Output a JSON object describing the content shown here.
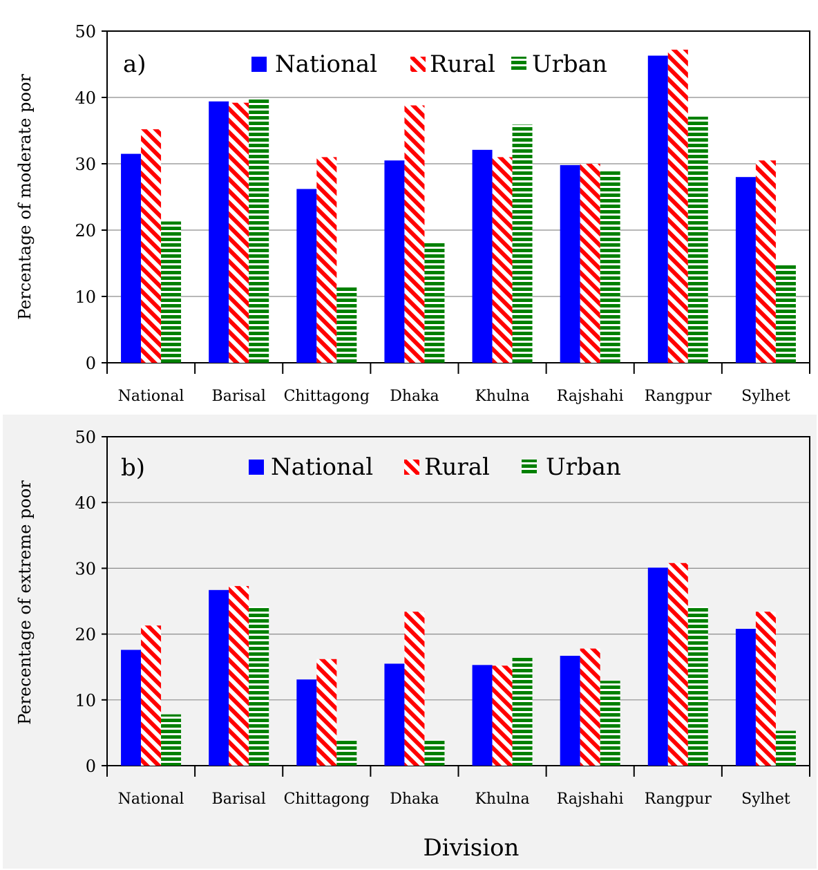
{
  "chart_data": [
    {
      "type": "bar",
      "panel_label": "a)",
      "ylabel": "Percentage of moderate poor",
      "xlabel": "",
      "ylim": [
        0,
        50
      ],
      "yticks": [
        "0",
        "10",
        "20",
        "30",
        "40",
        "50"
      ],
      "grid": true,
      "legend_position": "top",
      "categories": [
        "National",
        "Barisal",
        "Chittagong",
        "Dhaka",
        "Khulna",
        "Rajshahi",
        "Rangpur",
        "Sylhet"
      ],
      "series": [
        {
          "name": "National",
          "color": "#0000ff",
          "pattern": "solid",
          "values": [
            31.5,
            39.4,
            26.2,
            30.5,
            32.1,
            29.8,
            46.3,
            28.0
          ]
        },
        {
          "name": "Rural",
          "color": "#ff0000",
          "pattern": "diagonal-stripes",
          "values": [
            35.2,
            39.2,
            31.0,
            38.8,
            31.0,
            30.0,
            47.2,
            30.5
          ]
        },
        {
          "name": "Urban",
          "color": "#008000",
          "pattern": "horizontal-stripes",
          "values": [
            21.3,
            39.9,
            11.6,
            18.2,
            35.9,
            28.9,
            37.1,
            14.8
          ]
        }
      ]
    },
    {
      "type": "bar",
      "panel_label": "b)",
      "ylabel": "Perecentage of extreme poor",
      "xlabel": "Division",
      "ylim": [
        0,
        50
      ],
      "yticks": [
        "0",
        "10",
        "20",
        "30",
        "40",
        "50"
      ],
      "grid": true,
      "legend_position": "top",
      "categories": [
        "National",
        "Barisal",
        "Chittagong",
        "Dhaka",
        "Khulna",
        "Rajshahi",
        "Rangpur",
        "Sylhet"
      ],
      "series": [
        {
          "name": "National",
          "color": "#0000ff",
          "pattern": "solid",
          "values": [
            17.6,
            26.7,
            13.1,
            15.5,
            15.3,
            16.7,
            30.1,
            20.8
          ]
        },
        {
          "name": "Rural",
          "color": "#ff0000",
          "pattern": "diagonal-stripes",
          "values": [
            21.3,
            27.3,
            16.2,
            23.4,
            15.2,
            17.8,
            30.8,
            23.4
          ]
        },
        {
          "name": "Urban",
          "color": "#008000",
          "pattern": "horizontal-stripes",
          "values": [
            7.8,
            24.2,
            3.9,
            3.9,
            16.4,
            12.9,
            24.2,
            5.3
          ]
        }
      ]
    }
  ]
}
